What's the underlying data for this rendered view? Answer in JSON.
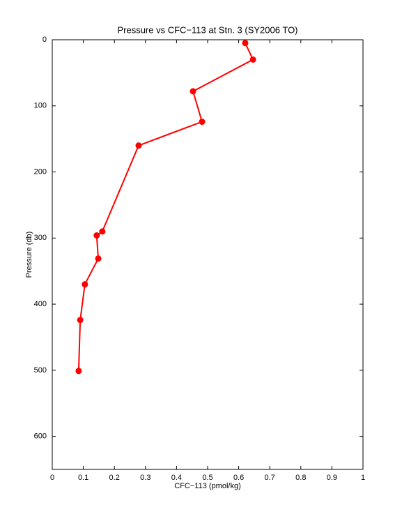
{
  "chart_data": {
    "type": "line",
    "title": "Pressure vs CFC−113 at Stn. 3 (SY2006 TO)",
    "xlabel": "CFC−113 (pmol/kg)",
    "ylabel": "Pressure (db)",
    "x": [
      0.621,
      0.646,
      0.453,
      0.482,
      0.278,
      0.161,
      0.143,
      0.148,
      0.105,
      0.09,
      0.085
    ],
    "series": [
      {
        "color": "#ff0000",
        "values": [
          5,
          30,
          78,
          124,
          160,
          290,
          296,
          331,
          370,
          424,
          501
        ]
      }
    ],
    "xlim": [
      0,
      1
    ],
    "xticks": [
      0,
      0.1,
      0.2,
      0.3,
      0.4,
      0.5,
      0.6,
      0.7,
      0.8,
      0.9,
      1
    ],
    "ylim": [
      0,
      650
    ],
    "yticks": [
      0,
      100,
      200,
      300,
      400,
      500,
      600
    ],
    "y_reversed": true,
    "grid": false
  }
}
